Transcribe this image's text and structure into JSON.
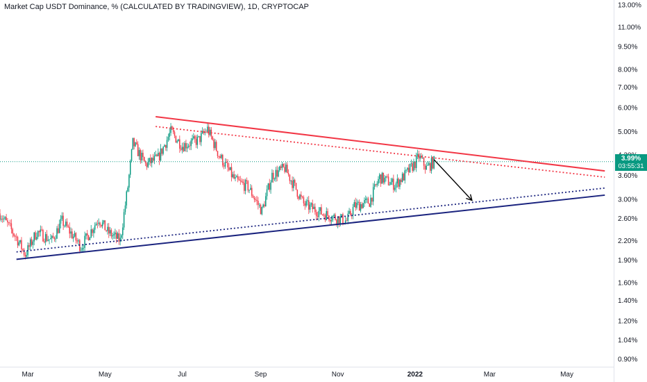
{
  "title": "Market Cap USDT Dominance, % (CALCULATED BY TRADINGVIEW), 1D, CRYPTOCAP",
  "price_badge": {
    "value": "3.99%",
    "countdown": "03:55:31"
  },
  "colors": {
    "up": "#089981",
    "down": "#f23645",
    "resistance": "#f23645",
    "support": "#1a237e",
    "arrow": "#000000",
    "price_line": "#089981"
  },
  "chart_data": {
    "type": "candlestick",
    "scale": "log",
    "ylim": [
      0.85,
      13.5
    ],
    "y_ticks": [
      {
        "value": 13.0,
        "label": "13.00%"
      },
      {
        "value": 11.0,
        "label": "11.00%"
      },
      {
        "value": 9.5,
        "label": "9.50%"
      },
      {
        "value": 8.0,
        "label": "8.00%"
      },
      {
        "value": 7.0,
        "label": "7.00%"
      },
      {
        "value": 6.0,
        "label": "6.00%"
      },
      {
        "value": 5.0,
        "label": "5.00%"
      },
      {
        "value": 4.2,
        "label": "4.20%"
      },
      {
        "value": 3.6,
        "label": "3.60%"
      },
      {
        "value": 3.0,
        "label": "3.00%"
      },
      {
        "value": 2.6,
        "label": "2.60%"
      },
      {
        "value": 2.2,
        "label": "2.20%"
      },
      {
        "value": 1.9,
        "label": "1.90%"
      },
      {
        "value": 1.6,
        "label": "1.60%"
      },
      {
        "value": 1.4,
        "label": "1.40%"
      },
      {
        "value": 1.2,
        "label": "1.20%"
      },
      {
        "value": 1.04,
        "label": "1.04%"
      },
      {
        "value": 0.9,
        "label": "0.90%"
      }
    ],
    "x_ticks": [
      {
        "date": "2021-03-01",
        "label": "Mar"
      },
      {
        "date": "2021-05-01",
        "label": "May"
      },
      {
        "date": "2021-07-01",
        "label": "Jul"
      },
      {
        "date": "2021-09-01",
        "label": "Sep"
      },
      {
        "date": "2021-11-01",
        "label": "Nov"
      },
      {
        "date": "2022-01-01",
        "label": "2022",
        "bold": true
      },
      {
        "date": "2022-03-01",
        "label": "Mar"
      },
      {
        "date": "2022-05-01",
        "label": "May"
      }
    ],
    "xlim": [
      "2021-02-07",
      "2022-06-07"
    ],
    "current_price": 3.99,
    "price_path": [
      [
        "2021-02-07",
        2.7
      ],
      [
        "2021-02-20",
        2.25
      ],
      [
        "2021-02-27",
        1.98
      ],
      [
        "2021-03-08",
        2.35
      ],
      [
        "2021-03-20",
        2.2
      ],
      [
        "2021-03-28",
        2.55
      ],
      [
        "2021-04-12",
        2.1
      ],
      [
        "2021-04-26",
        2.6
      ],
      [
        "2021-05-03",
        2.35
      ],
      [
        "2021-05-13",
        2.2
      ],
      [
        "2021-05-19",
        3.3
      ],
      [
        "2021-05-23",
        4.6
      ],
      [
        "2021-06-02",
        3.9
      ],
      [
        "2021-06-12",
        4.1
      ],
      [
        "2021-06-22",
        5.0
      ],
      [
        "2021-07-01",
        4.5
      ],
      [
        "2021-07-14",
        4.7
      ],
      [
        "2021-07-21",
        5.1
      ],
      [
        "2021-07-30",
        4.2
      ],
      [
        "2021-08-12",
        3.45
      ],
      [
        "2021-08-22",
        3.3
      ],
      [
        "2021-09-02",
        2.75
      ],
      [
        "2021-09-10",
        3.6
      ],
      [
        "2021-09-20",
        3.8
      ],
      [
        "2021-09-28",
        3.3
      ],
      [
        "2021-10-05",
        2.9
      ],
      [
        "2021-10-20",
        2.7
      ],
      [
        "2021-11-08",
        2.55
      ],
      [
        "2021-11-14",
        2.85
      ],
      [
        "2021-11-26",
        2.95
      ],
      [
        "2021-12-04",
        3.55
      ],
      [
        "2021-12-16",
        3.35
      ],
      [
        "2021-12-24",
        3.6
      ],
      [
        "2022-01-01",
        3.95
      ],
      [
        "2022-01-04",
        4.15
      ],
      [
        "2022-01-10",
        3.8
      ],
      [
        "2022-01-16",
        3.99
      ]
    ],
    "trendlines": [
      {
        "name": "",
        "from": [
          "2021-06-10",
          5.6
        ],
        "to": [
          "2022-05-31",
          3.72
        ],
        "style": "solid",
        "color": "#f23645"
      },
      {
        "name": "",
        "from": [
          "2021-06-10",
          5.2
        ],
        "to": [
          "2022-05-31",
          3.55
        ],
        "style": "dotted",
        "color": "#f23645"
      },
      {
        "name": "",
        "from": [
          "2021-02-20",
          1.91
        ],
        "to": [
          "2022-05-31",
          3.1
        ],
        "style": "solid",
        "color": "#1a237e"
      },
      {
        "name": "",
        "from": [
          "2021-02-20",
          2.02
        ],
        "to": [
          "2022-05-31",
          3.27
        ],
        "style": "dotted",
        "color": "#1a237e"
      }
    ],
    "arrow": {
      "from": [
        "2022-01-16",
        4.05
      ],
      "to": [
        "2022-02-15",
        2.98
      ]
    }
  }
}
